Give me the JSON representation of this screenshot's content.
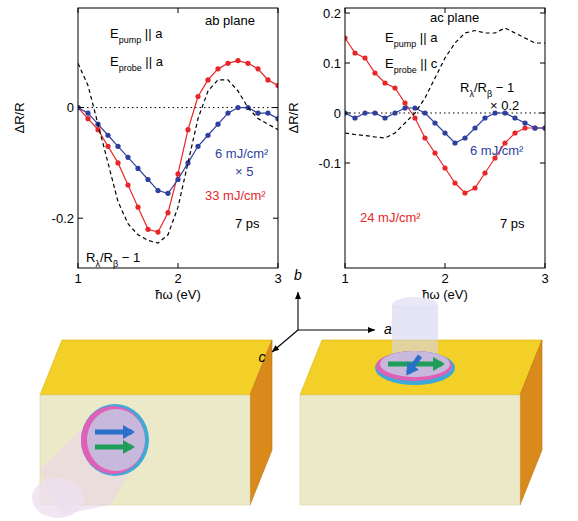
{
  "chart_data": [
    {
      "type": "line",
      "x_label": "ħω (eV)",
      "y_label": "ΔR/R",
      "xlim": [
        1,
        3
      ],
      "ylim": [
        -0.29,
        0.18
      ],
      "xticks": [
        1,
        2,
        3
      ],
      "yticks": [
        -0.2,
        0
      ],
      "baseline": 0,
      "x": [
        1,
        1.1,
        1.2,
        1.3,
        1.4,
        1.5,
        1.6,
        1.7,
        1.8,
        1.9,
        2,
        2.1,
        2.2,
        2.3,
        2.4,
        2.5,
        2.6,
        2.7,
        2.8,
        2.9,
        3
      ],
      "series": [
        {
          "color": "#e8262a",
          "marker": "circle",
          "line_style": "solid",
          "values": [
            0,
            -0.02,
            -0.04,
            -0.07,
            -0.1,
            -0.14,
            -0.18,
            -0.22,
            -0.225,
            -0.19,
            -0.12,
            -0.04,
            0.02,
            0.05,
            0.07,
            0.08,
            0.085,
            0.08,
            0.07,
            0.05,
            0.04
          ]
        },
        {
          "color": "#2f3f9e",
          "marker": "circle",
          "line_style": "solid",
          "values": [
            0,
            -0.01,
            -0.03,
            -0.05,
            -0.07,
            -0.09,
            -0.11,
            -0.13,
            -0.15,
            -0.155,
            -0.13,
            -0.1,
            -0.07,
            -0.05,
            -0.03,
            -0.01,
            0,
            0,
            -0.01,
            -0.01,
            -0.02
          ]
        },
        {
          "color": "#000000",
          "marker": "none",
          "line_style": "dashed",
          "values": [
            0.08,
            0.04,
            -0.03,
            -0.1,
            -0.17,
            -0.21,
            -0.23,
            -0.24,
            -0.245,
            -0.23,
            -0.18,
            -0.1,
            -0.02,
            0.03,
            0.05,
            0.05,
            0.03,
            0,
            -0.02,
            -0.03,
            -0.04
          ]
        }
      ],
      "annotations": [
        {
          "parts": [
            "E",
            {
              "sub": "pump"
            },
            " || a"
          ],
          "color": "#000000"
        },
        {
          "parts": [
            "E",
            {
              "sub": "probe"
            },
            " || a"
          ],
          "color": "#000000"
        },
        {
          "parts": [
            "ab plane"
          ],
          "color": "#000000"
        },
        {
          "parts": [
            "6 mJ/cm²"
          ],
          "color": "#2f3f9e"
        },
        {
          "parts": [
            "× 5"
          ],
          "color": "#2f3f9e"
        },
        {
          "parts": [
            "33 mJ/cm²"
          ],
          "color": "#e8262a"
        },
        {
          "parts": [
            "7 ps"
          ],
          "color": "#000000"
        },
        {
          "parts": [
            "R",
            {
              "sub": "λ"
            },
            "/R",
            {
              "sub": "β"
            },
            " − 1"
          ],
          "color": "#000000"
        }
      ]
    },
    {
      "type": "line",
      "x_label": "ħω (eV)",
      "y_label": "ΔR/R",
      "xlim": [
        1,
        3
      ],
      "ylim": [
        -0.31,
        0.21
      ],
      "xticks": [
        1,
        2,
        3
      ],
      "yticks": [
        -0.1,
        0,
        0.1,
        0.2
      ],
      "baseline": 0,
      "x": [
        1,
        1.1,
        1.2,
        1.3,
        1.4,
        1.5,
        1.6,
        1.7,
        1.8,
        1.9,
        2,
        2.1,
        2.2,
        2.3,
        2.4,
        2.5,
        2.6,
        2.7,
        2.8,
        2.9,
        3
      ],
      "series": [
        {
          "color": "#e8262a",
          "marker": "circle",
          "line_style": "solid",
          "values": [
            0.15,
            0.12,
            0.11,
            0.08,
            0.06,
            0.05,
            0.02,
            -0.01,
            -0.05,
            -0.08,
            -0.11,
            -0.14,
            -0.16,
            -0.15,
            -0.12,
            -0.09,
            -0.06,
            -0.04,
            -0.03,
            -0.03,
            -0.03
          ]
        },
        {
          "color": "#2f3f9e",
          "marker": "circle",
          "line_style": "solid",
          "values": [
            0,
            -0.01,
            0,
            0,
            -0.01,
            0,
            0.01,
            0.01,
            0,
            -0.02,
            -0.04,
            -0.06,
            -0.05,
            -0.03,
            -0.01,
            0,
            0,
            -0.01,
            -0.02,
            -0.03,
            -0.03
          ]
        },
        {
          "color": "#000000",
          "marker": "none",
          "line_style": "dashed",
          "values": [
            -0.04,
            -0.043,
            -0.045,
            -0.048,
            -0.05,
            -0.04,
            -0.02,
            0,
            0.03,
            0.07,
            0.11,
            0.14,
            0.16,
            0.165,
            0.16,
            0.16,
            0.17,
            0.16,
            0.15,
            0.14,
            0.14
          ]
        }
      ],
      "annotations": [
        {
          "parts": [
            "ac plane"
          ],
          "color": "#000000"
        },
        {
          "parts": [
            "E",
            {
              "sub": "pump"
            },
            " || a"
          ],
          "color": "#000000"
        },
        {
          "parts": [
            "E",
            {
              "sub": "probe"
            },
            " || c"
          ],
          "color": "#000000"
        },
        {
          "parts": [
            "R",
            {
              "sub": "λ"
            },
            "/R",
            {
              "sub": "β"
            },
            " − 1"
          ],
          "color": "#000000"
        },
        {
          "parts": [
            "× 0.2"
          ],
          "color": "#000000"
        },
        {
          "parts": [
            "6 mJ/cm²"
          ],
          "color": "#2f3f9e"
        },
        {
          "parts": [
            "24 mJ/cm²"
          ],
          "color": "#e8262a"
        },
        {
          "parts": [
            "7 ps"
          ],
          "color": "#000000"
        }
      ]
    }
  ],
  "diagram": {
    "axis_labels": [
      "b",
      "c",
      "a"
    ]
  }
}
